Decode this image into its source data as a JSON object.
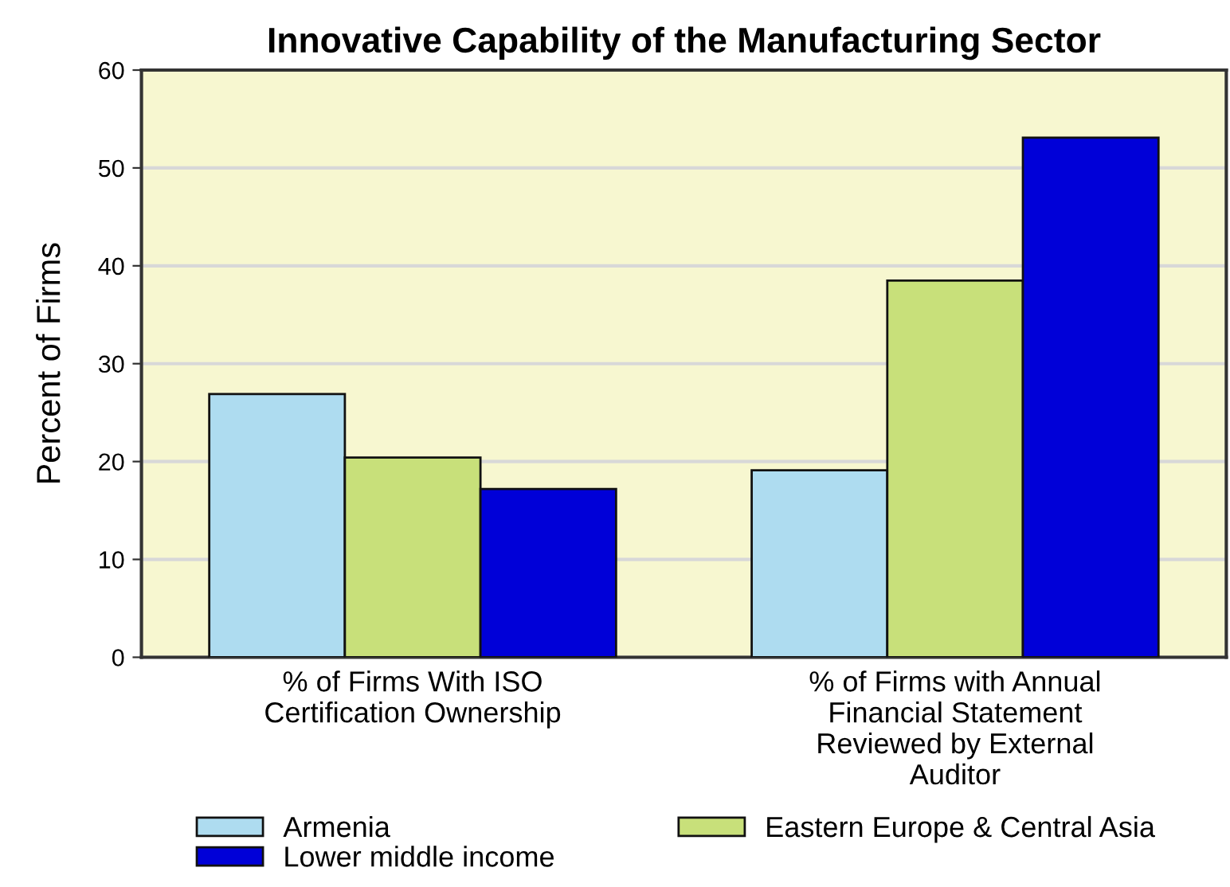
{
  "chart_data": {
    "type": "bar",
    "title": "Innovative Capability of the Manufacturing Sector",
    "ylabel": "Percent of Firms",
    "categories": [
      "% of Firms With ISO\nCertification Ownership",
      "% of Firms with Annual\nFinancial Statement\nReviewed by External\nAuditor"
    ],
    "series": [
      {
        "name": "Armenia",
        "color": "#aedcf0",
        "values": [
          26.9,
          19.1
        ]
      },
      {
        "name": "Eastern Europe & Central Asia",
        "color": "#c8e07a",
        "values": [
          20.4,
          38.5
        ]
      },
      {
        "name": "Lower middle income",
        "color": "#0000d8",
        "values": [
          17.2,
          53.1
        ]
      }
    ],
    "ylim": [
      0,
      60
    ],
    "yticks": [
      0,
      10,
      20,
      30,
      40,
      50,
      60
    ],
    "grid": "y",
    "legend": "bottom"
  }
}
